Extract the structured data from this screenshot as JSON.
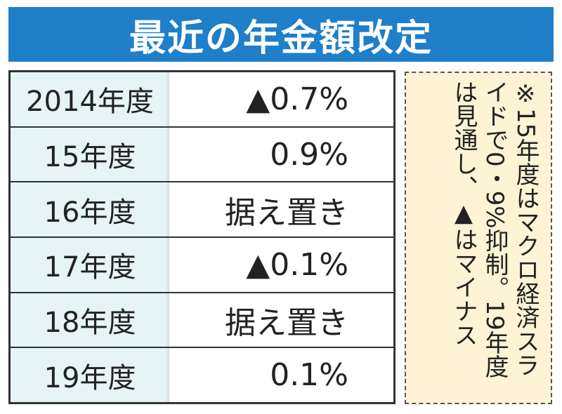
{
  "title": "最近の年金額改定",
  "chart_data": {
    "type": "table",
    "title": "最近の年金額改定",
    "rows": [
      {
        "year": "2014年度",
        "change": "▲0.7%"
      },
      {
        "year": "15年度",
        "change": "0.9%"
      },
      {
        "year": "16年度",
        "change": "据え置き"
      },
      {
        "year": "17年度",
        "change": "▲0.1%"
      },
      {
        "year": "18年度",
        "change": "据え置き"
      },
      {
        "year": "19年度",
        "change": "0.1%"
      }
    ],
    "note": "※15年度はマクロ経済スライドで0・9%抑制。19年度は見通し、▲はマイナス"
  },
  "colors": {
    "title_bg": "#1f7fc8",
    "year_cell_bg": "#e6f4f6",
    "note_bg": "#fff3d6"
  }
}
